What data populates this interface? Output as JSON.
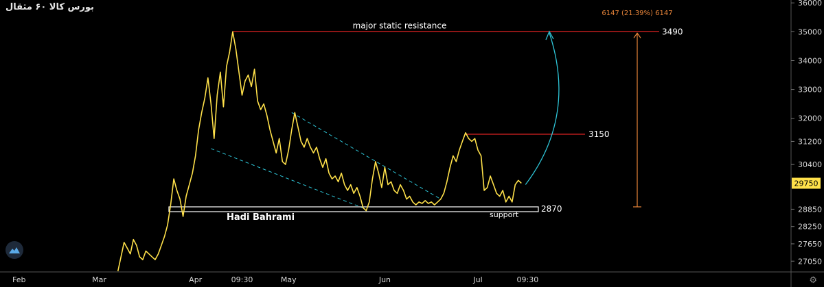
{
  "header": {
    "symbol_title": "بورس کالا  ۶۰  مثقال"
  },
  "colors": {
    "price_line": "#ffe14a",
    "resistance": "#d32020",
    "channel": "#2ec4d6",
    "arrow": "#2ec4d6",
    "measure": "#e8853a",
    "axis_text": "#d8d8d8",
    "support_box": "#ffffff",
    "price_tag": "#ffe14a"
  },
  "icons": {
    "logo": "tradingview-logo-icon",
    "settings": "gear-icon"
  },
  "chart_data": {
    "type": "line",
    "title": "",
    "xlabel": "",
    "ylabel": "",
    "ylim": [
      26700,
      36100
    ],
    "y_ticks": [
      27050,
      27650,
      28250,
      28850,
      29750,
      30400,
      31200,
      32000,
      33000,
      34000,
      35000,
      36000
    ],
    "x_tick_labels": [
      {
        "label": "Feb",
        "x": 0
      },
      {
        "label": "Mar",
        "x": 28
      },
      {
        "label": "Apr",
        "x": 59
      },
      {
        "label": "09:30",
        "x": 74
      },
      {
        "label": "May",
        "x": 89
      },
      {
        "label": "Jun",
        "x": 120
      },
      {
        "label": "Jul",
        "x": 150
      },
      {
        "label": "09:30",
        "x": 166
      }
    ],
    "x_range": [
      0,
      246
    ],
    "series": [
      {
        "values": [
          [
            34,
            26700
          ],
          [
            35,
            27200
          ],
          [
            36,
            27700
          ],
          [
            37,
            27500
          ],
          [
            38,
            27300
          ],
          [
            39,
            27800
          ],
          [
            40,
            27600
          ],
          [
            41,
            27200
          ],
          [
            42,
            27100
          ],
          [
            43,
            27400
          ],
          [
            44,
            27300
          ],
          [
            45,
            27200
          ],
          [
            46,
            27100
          ],
          [
            47,
            27300
          ],
          [
            48,
            27600
          ],
          [
            49,
            27900
          ],
          [
            50,
            28300
          ],
          [
            51,
            29000
          ],
          [
            52,
            29900
          ],
          [
            53,
            29500
          ],
          [
            54,
            29200
          ],
          [
            55,
            28600
          ],
          [
            56,
            29300
          ],
          [
            57,
            29700
          ],
          [
            58,
            30100
          ],
          [
            59,
            30700
          ],
          [
            60,
            31600
          ],
          [
            61,
            32200
          ],
          [
            62,
            32700
          ],
          [
            63,
            33400
          ],
          [
            64,
            32500
          ],
          [
            65,
            31300
          ],
          [
            66,
            32800
          ],
          [
            67,
            33600
          ],
          [
            68,
            32400
          ],
          [
            69,
            33800
          ],
          [
            70,
            34300
          ],
          [
            71,
            35000
          ],
          [
            72,
            34400
          ],
          [
            73,
            33600
          ],
          [
            74,
            32800
          ],
          [
            75,
            33300
          ],
          [
            76,
            33500
          ],
          [
            77,
            33100
          ],
          [
            78,
            33700
          ],
          [
            79,
            32600
          ],
          [
            80,
            32300
          ],
          [
            81,
            32500
          ],
          [
            82,
            32100
          ],
          [
            83,
            31600
          ],
          [
            84,
            31200
          ],
          [
            85,
            30800
          ],
          [
            86,
            31300
          ],
          [
            87,
            30500
          ],
          [
            88,
            30400
          ],
          [
            89,
            30900
          ],
          [
            90,
            31600
          ],
          [
            91,
            32200
          ],
          [
            92,
            31700
          ],
          [
            93,
            31200
          ],
          [
            94,
            31000
          ],
          [
            95,
            31300
          ],
          [
            96,
            31000
          ],
          [
            97,
            30800
          ],
          [
            98,
            31000
          ],
          [
            99,
            30600
          ],
          [
            100,
            30300
          ],
          [
            101,
            30600
          ],
          [
            102,
            30100
          ],
          [
            103,
            29900
          ],
          [
            104,
            30000
          ],
          [
            105,
            29800
          ],
          [
            106,
            30100
          ],
          [
            107,
            29700
          ],
          [
            108,
            29500
          ],
          [
            109,
            29700
          ],
          [
            110,
            29400
          ],
          [
            111,
            29600
          ],
          [
            112,
            29300
          ],
          [
            113,
            28900
          ],
          [
            114,
            28800
          ],
          [
            115,
            29100
          ],
          [
            116,
            29900
          ],
          [
            117,
            30500
          ],
          [
            118,
            30100
          ],
          [
            119,
            29600
          ],
          [
            120,
            30300
          ],
          [
            121,
            29700
          ],
          [
            122,
            29800
          ],
          [
            123,
            29500
          ],
          [
            124,
            29400
          ],
          [
            125,
            29700
          ],
          [
            126,
            29500
          ],
          [
            127,
            29200
          ],
          [
            128,
            29300
          ],
          [
            129,
            29100
          ],
          [
            130,
            29000
          ],
          [
            131,
            29100
          ],
          [
            132,
            29050
          ],
          [
            133,
            29150
          ],
          [
            134,
            29050
          ],
          [
            135,
            29100
          ],
          [
            136,
            29000
          ],
          [
            137,
            29100
          ],
          [
            138,
            29200
          ],
          [
            139,
            29400
          ],
          [
            140,
            29800
          ],
          [
            141,
            30300
          ],
          [
            142,
            30700
          ],
          [
            143,
            30500
          ],
          [
            144,
            30900
          ],
          [
            145,
            31200
          ],
          [
            146,
            31500
          ],
          [
            147,
            31300
          ],
          [
            148,
            31200
          ],
          [
            149,
            31300
          ],
          [
            150,
            30900
          ],
          [
            151,
            30700
          ],
          [
            152,
            29500
          ],
          [
            153,
            29600
          ],
          [
            154,
            30000
          ],
          [
            155,
            29700
          ],
          [
            156,
            29400
          ],
          [
            157,
            29300
          ],
          [
            158,
            29500
          ],
          [
            159,
            29100
          ],
          [
            160,
            29300
          ],
          [
            161,
            29100
          ],
          [
            162,
            29700
          ],
          [
            163,
            29850
          ],
          [
            164,
            29750
          ]
        ]
      }
    ],
    "annotations": {
      "resistance_label": "major static resistance",
      "resistance_price": 35000,
      "resistance_value_label": "3490",
      "mid_resistance_price": 31450,
      "mid_resistance_value_label": "3150",
      "support_label": "support",
      "support_value_label": "2870",
      "author_label": "Hadi Bahrami",
      "measure_label": "6147 (21.39%) 6147",
      "current_price_label": "29750"
    }
  }
}
